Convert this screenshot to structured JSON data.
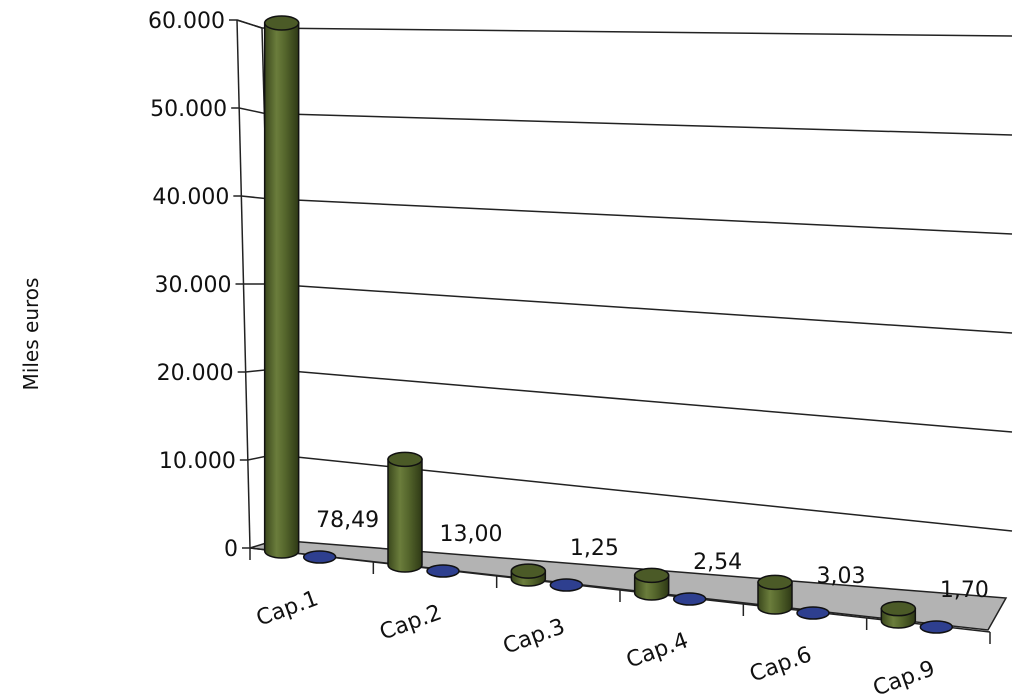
{
  "chart_data": {
    "type": "bar",
    "title": "",
    "xlabel": "",
    "ylabel": "Miles euros",
    "ylim": [
      0,
      60000
    ],
    "yticks": [
      0,
      10000,
      20000,
      30000,
      40000,
      50000,
      60000
    ],
    "ytick_labels": [
      "0",
      "10.000",
      "20.000",
      "30.000",
      "40.000",
      "50.000",
      "60.000"
    ],
    "categories": [
      "Cap.1",
      "Cap.2",
      "Cap.3",
      "Cap.4",
      "Cap.6",
      "Cap.9"
    ],
    "grid": true,
    "legend": "none",
    "series": [
      {
        "values": [
          60000,
          12000,
          900,
          2000,
          2800,
          1400
        ],
        "color": "#4b5a27"
      },
      {
        "values": [
          78.49,
          13.0,
          1.25,
          2.54,
          3.03,
          1.7
        ],
        "data_labels": [
          "78,49",
          "13,00",
          "1,25",
          "2,54",
          "3,03",
          "1,70"
        ],
        "color": "#2e3f8f"
      }
    ],
    "floor_color": "#b3b3b3"
  }
}
